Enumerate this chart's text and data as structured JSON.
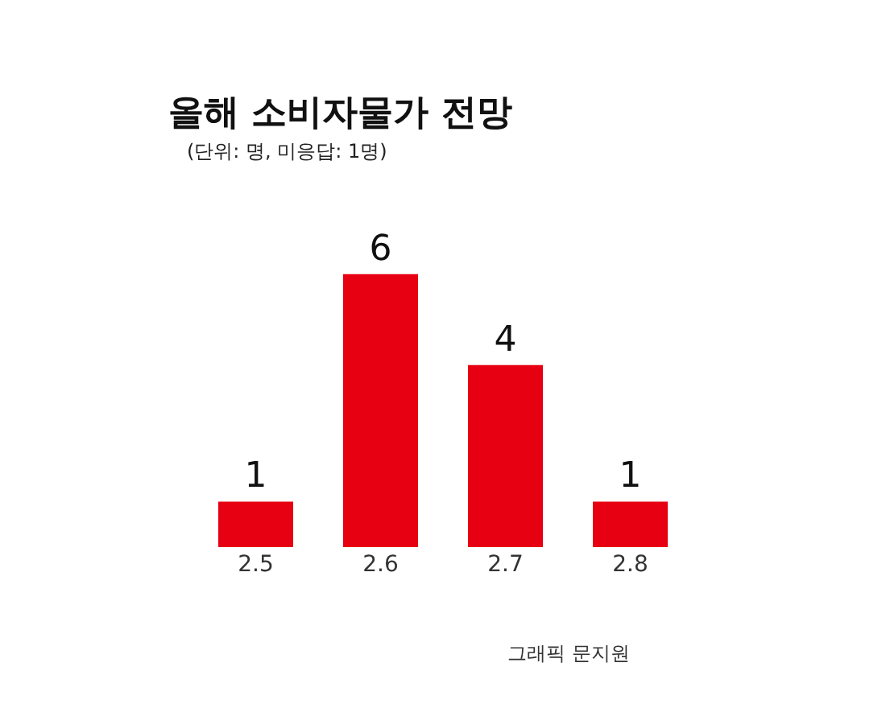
{
  "chart_data": {
    "type": "bar",
    "title": "올해 소비자물가 전망",
    "subtitle": "(단위: 명, 미응답: 1명)",
    "categories": [
      "2.5",
      "2.6",
      "2.7",
      "2.8"
    ],
    "values": [
      1,
      6,
      4,
      1
    ],
    "color": "#e60012",
    "data_labels": true,
    "annotations": [
      "그래픽 문지원"
    ]
  }
}
